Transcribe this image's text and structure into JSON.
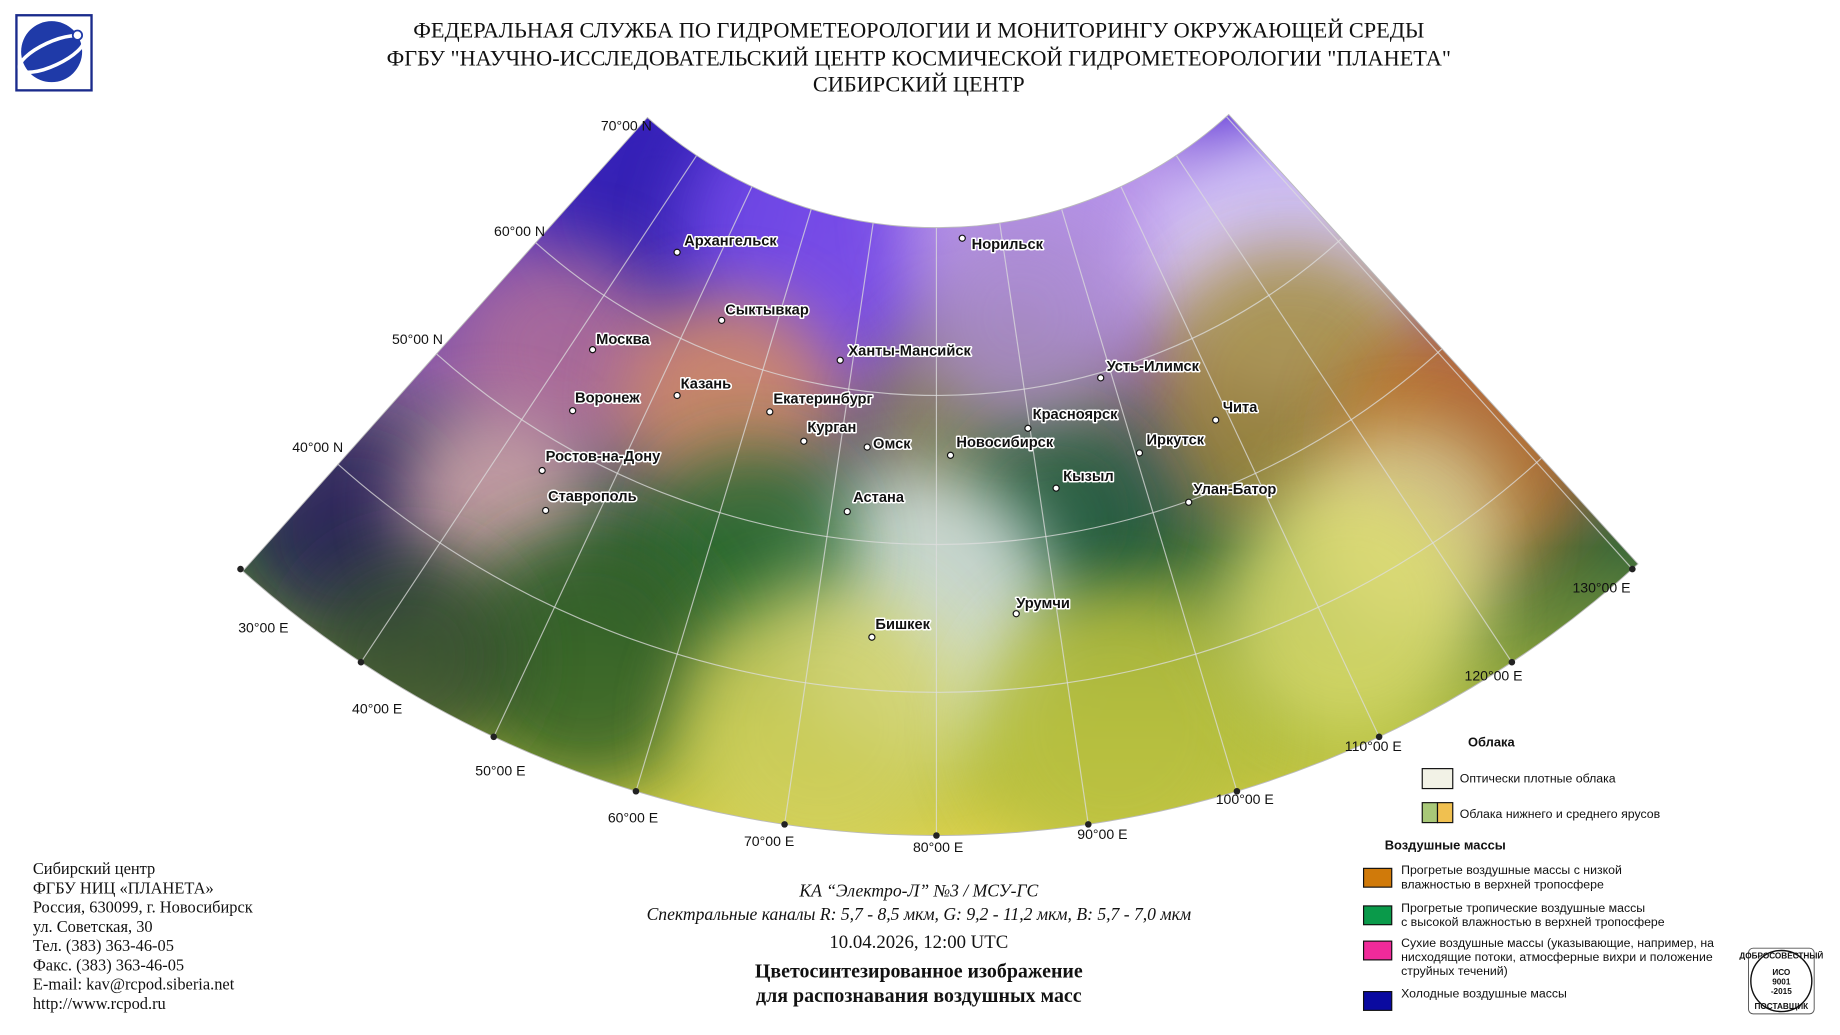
{
  "header": {
    "lines": [
      "ФЕДЕРАЛЬНАЯ СЛУЖБА ПО ГИДРОМЕТЕОРОЛОГИИ И МОНИТОРИНГУ ОКРУЖАЮЩЕЙ СРЕДЫ",
      "ФГБУ \"НАУЧНО-ИССЛЕДОВАТЕЛЬСКИЙ ЦЕНТР КОСМИЧЕСКОЙ ГИДРОМЕТЕОРОЛОГИИ \"ПЛАНЕТА\"",
      "СИБИРСКИЙ ЦЕНТР"
    ]
  },
  "map": {
    "latitude_labels": [
      "70°00 N",
      "60°00 N",
      "50°00 N",
      "40°00 N"
    ],
    "longitude_labels": [
      "30°00 E",
      "40°00 E",
      "50°00 E",
      "60°00 E",
      "70°00 E",
      "80°00 E",
      "90°00 E",
      "100°00 E",
      "110°00 E",
      "120°00 E",
      "130°00 E"
    ],
    "cities": [
      "Архангельск",
      "Сыктывкар",
      "Норильск",
      "Москва",
      "Ханты-Мансийск",
      "Усть-Илимск",
      "Казань",
      "Воронеж",
      "Екатеринбург",
      "Красноярск",
      "Чита",
      "Курган",
      "Омск",
      "Новосибирск",
      "Иркутск",
      "Ростов-на-Дону",
      "Кызыл",
      "Улан-Батор",
      "Ставрополь",
      "Астана",
      "Урумчи",
      "Бишкек"
    ]
  },
  "legend": {
    "clouds_title": "Облака",
    "clouds_items": [
      "Оптически плотные облака",
      "Облака нижнего и среднего ярусов"
    ],
    "air_masses_title": "Воздушные массы",
    "air_masses_items": [
      [
        "Прогретые воздушные массы с низкой",
        "влажностью в верхней тропосфере"
      ],
      [
        "Прогретые тропичеcкие воздушные массы",
        "с высокой влажностью в верхней тропосфере"
      ],
      [
        "Сухие воздушные массы (указывающие, например, на",
        "нисходящие потоки, атмосферные вихри и положение",
        "струйных течений)"
      ],
      [
        "Холодные воздушные массы"
      ]
    ]
  },
  "footer": {
    "contact": [
      "Сибирский центр",
      "ФГБУ НИЦ «ПЛАНЕТА»",
      "Россия, 630099, г. Новосибирск",
      "ул. Советская, 30",
      "Тел. (383) 363-46-05",
      "Факс. (383) 363-46-05",
      "E-mail: kav@rcpod.siberia.net",
      "http://www.rcpod.ru"
    ]
  },
  "caption": {
    "satellite": "КА “Электро-Л” №3 / МСУ-ГС",
    "channels": "Спектральные каналы R: 5,7 - 8,5 мкм, G: 9,2 - 11,2 мкм, B: 5,7 - 7,0 мкм",
    "datetime": "10.04.2026, 12:00 UTC",
    "title_lines": [
      "Цветосинтезированное изображение",
      "для распознавания воздушных масс"
    ]
  },
  "badge": {
    "top": "ДОБРОСОВЕСТНЫЙ",
    "lines": [
      "ИСО",
      "9001",
      "-2015"
    ],
    "bottom": "ПОСТАВЩИК"
  }
}
